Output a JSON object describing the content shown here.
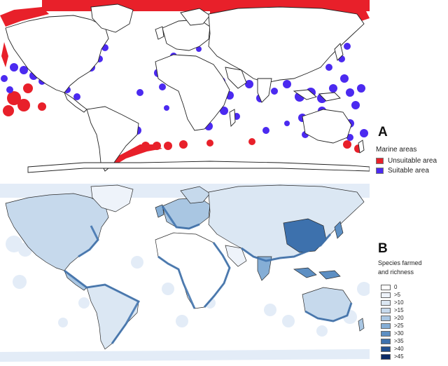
{
  "panel_a": {
    "label": "A",
    "legend_title": "Marine areas",
    "items": [
      {
        "label": "Unsuitable area",
        "color": "#e8202a"
      },
      {
        "label": "Suitable area",
        "color": "#4b2af0"
      }
    ]
  },
  "panel_b": {
    "label": "B",
    "legend_title_line1": "Species farmed",
    "legend_title_line2": "and richness",
    "classes": [
      {
        "label": "0",
        "color": "#ffffff"
      },
      {
        "label": ">5",
        "color": "#eef3fa"
      },
      {
        "label": ">10",
        "color": "#dbe7f3"
      },
      {
        "label": ">15",
        "color": "#c6d9ec"
      },
      {
        "label": ">20",
        "color": "#a9c6e2"
      },
      {
        "label": ">25",
        "color": "#85aed6"
      },
      {
        "label": ">30",
        "color": "#5d8fc3"
      },
      {
        "label": ">35",
        "color": "#3d71ad"
      },
      {
        "label": ">40",
        "color": "#1f4e8f"
      },
      {
        "label": ">45",
        "color": "#0c2b66"
      }
    ]
  },
  "colors": {
    "land": "#ffffff",
    "border": "#222222",
    "ocean_light": "#e3ecf7"
  }
}
